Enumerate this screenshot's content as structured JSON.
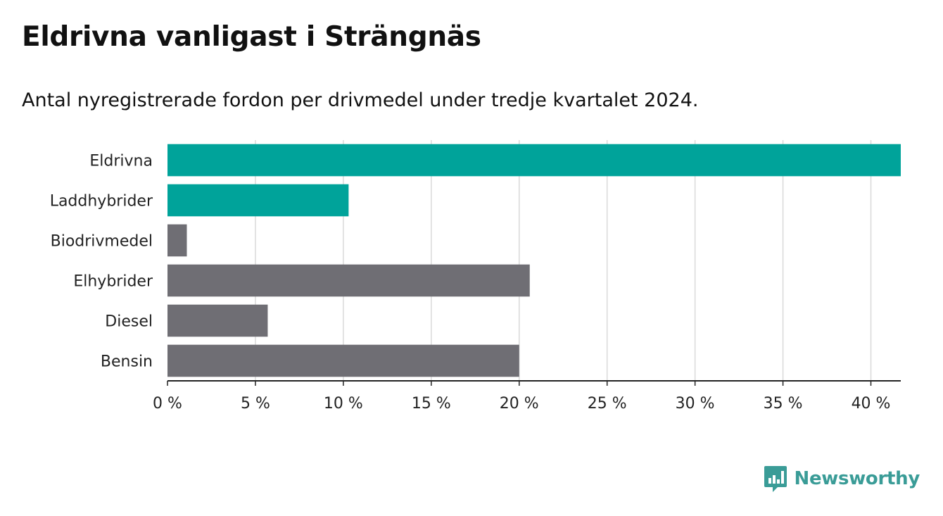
{
  "title": "Eldrivna vanligast i Strängnäs",
  "subtitle": "Antal nyregistrerade fordon per drivmedel under tredje kvartalet 2024.",
  "brand": {
    "name": "Newsworthy",
    "color": "#3a9c97",
    "icon": "newsworthy-bar-chart-icon"
  },
  "colors": {
    "highlight": "#00a39a",
    "default": "#6f6e74",
    "grid": "#d9d9d9",
    "axis": "#222222"
  },
  "chart_data": {
    "type": "bar",
    "orientation": "horizontal",
    "categories": [
      "Eldrivna",
      "Laddhybrider",
      "Biodrivmedel",
      "Elhybrider",
      "Diesel",
      "Bensin"
    ],
    "values": [
      41.7,
      10.3,
      1.1,
      20.6,
      5.7,
      20.0
    ],
    "highlighted": [
      true,
      true,
      false,
      false,
      false,
      false
    ],
    "xlim": [
      0,
      41.7
    ],
    "xticks": [
      0,
      5,
      10,
      15,
      20,
      25,
      30,
      35,
      40
    ],
    "xtick_labels": [
      "0 %",
      "5 %",
      "10 %",
      "15 %",
      "20 %",
      "25 %",
      "30 %",
      "35 %",
      "40 %"
    ],
    "grid": true,
    "legend": "none"
  }
}
